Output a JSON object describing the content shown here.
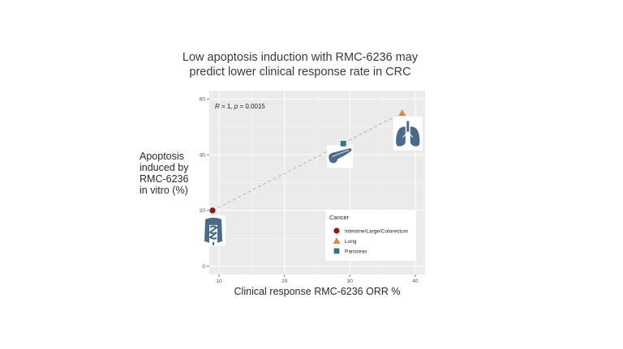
{
  "chart_data": {
    "type": "scatter",
    "title_lines": [
      "Low apoptosis induction with RMC-6236 may",
      "predict lower clinical response rate in CRC"
    ],
    "xlabel": "Clinical response RMC-6236 ORR %",
    "ylabel_lines": [
      "Apoptosis",
      "induced by",
      "RMC-6236",
      "in vitro (%)"
    ],
    "xlim": [
      8.5,
      41.5
    ],
    "ylim": [
      -3,
      63
    ],
    "xticks": [
      10,
      20,
      30,
      40
    ],
    "yticks": [
      0,
      20,
      40,
      60
    ],
    "grid": true,
    "annotation": {
      "prefix": "R",
      "middle": " = 1, ",
      "p": "p",
      "suffix": " = 0.0015"
    },
    "trend_line": {
      "from": [
        9,
        20
      ],
      "to": [
        38,
        55
      ]
    },
    "legend": {
      "title": "Cancer",
      "position": "bottom-right",
      "entries": [
        {
          "label": "Intestine/Large/Colorectum",
          "shape": "circle",
          "color": "#8b1a10"
        },
        {
          "label": "Lung",
          "shape": "triangle",
          "color": "#e8823a"
        },
        {
          "label": "Pancreas",
          "shape": "square",
          "color": "#2f7a80"
        }
      ]
    },
    "points": [
      {
        "series": "Intestine/Large/Colorectum",
        "x": 9,
        "y": 20,
        "shape": "circle",
        "color": "#8b1a10",
        "organ_icon": "intestine-icon"
      },
      {
        "series": "Pancreas",
        "x": 29,
        "y": 44,
        "shape": "square",
        "color": "#2f7a80",
        "organ_icon": "pancreas-icon"
      },
      {
        "series": "Lung",
        "x": 38,
        "y": 55,
        "shape": "triangle",
        "color": "#e8823a",
        "organ_icon": "lungs-icon"
      }
    ]
  },
  "colors": {
    "panel": "#ebebeb",
    "grid": "#ffffff",
    "organ": "#4a6a8c",
    "trend": "#b8b8b8"
  }
}
